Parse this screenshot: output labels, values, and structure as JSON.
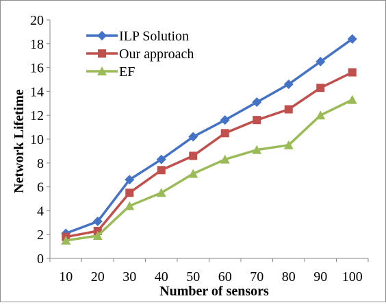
{
  "chart_data": {
    "type": "line",
    "title": "",
    "xlabel": "Number of sensors",
    "ylabel": "Network Lifetime",
    "categories": [
      "10",
      "20",
      "30",
      "40",
      "50",
      "60",
      "70",
      "80",
      "90",
      "100"
    ],
    "ylim": [
      0,
      20
    ],
    "yticks": [
      "0",
      "2",
      "4",
      "6",
      "8",
      "10",
      "12",
      "14",
      "16",
      "18",
      "20"
    ],
    "grid": false,
    "legend_position": "top-left",
    "series": [
      {
        "name": "ILP Solution",
        "color": "#4472C4",
        "marker": "diamond",
        "values": [
          2.1,
          3.1,
          6.6,
          8.3,
          10.2,
          11.6,
          13.1,
          14.6,
          16.5,
          18.4
        ]
      },
      {
        "name": "Our approach",
        "color": "#C0504D",
        "marker": "square",
        "values": [
          1.8,
          2.3,
          5.5,
          7.4,
          8.6,
          10.5,
          11.6,
          12.5,
          14.3,
          15.6
        ]
      },
      {
        "name": "EF",
        "color": "#9BBB59",
        "marker": "triangle",
        "values": [
          1.5,
          1.9,
          4.4,
          5.5,
          7.1,
          8.3,
          9.1,
          9.5,
          12.0,
          13.3
        ]
      }
    ]
  }
}
